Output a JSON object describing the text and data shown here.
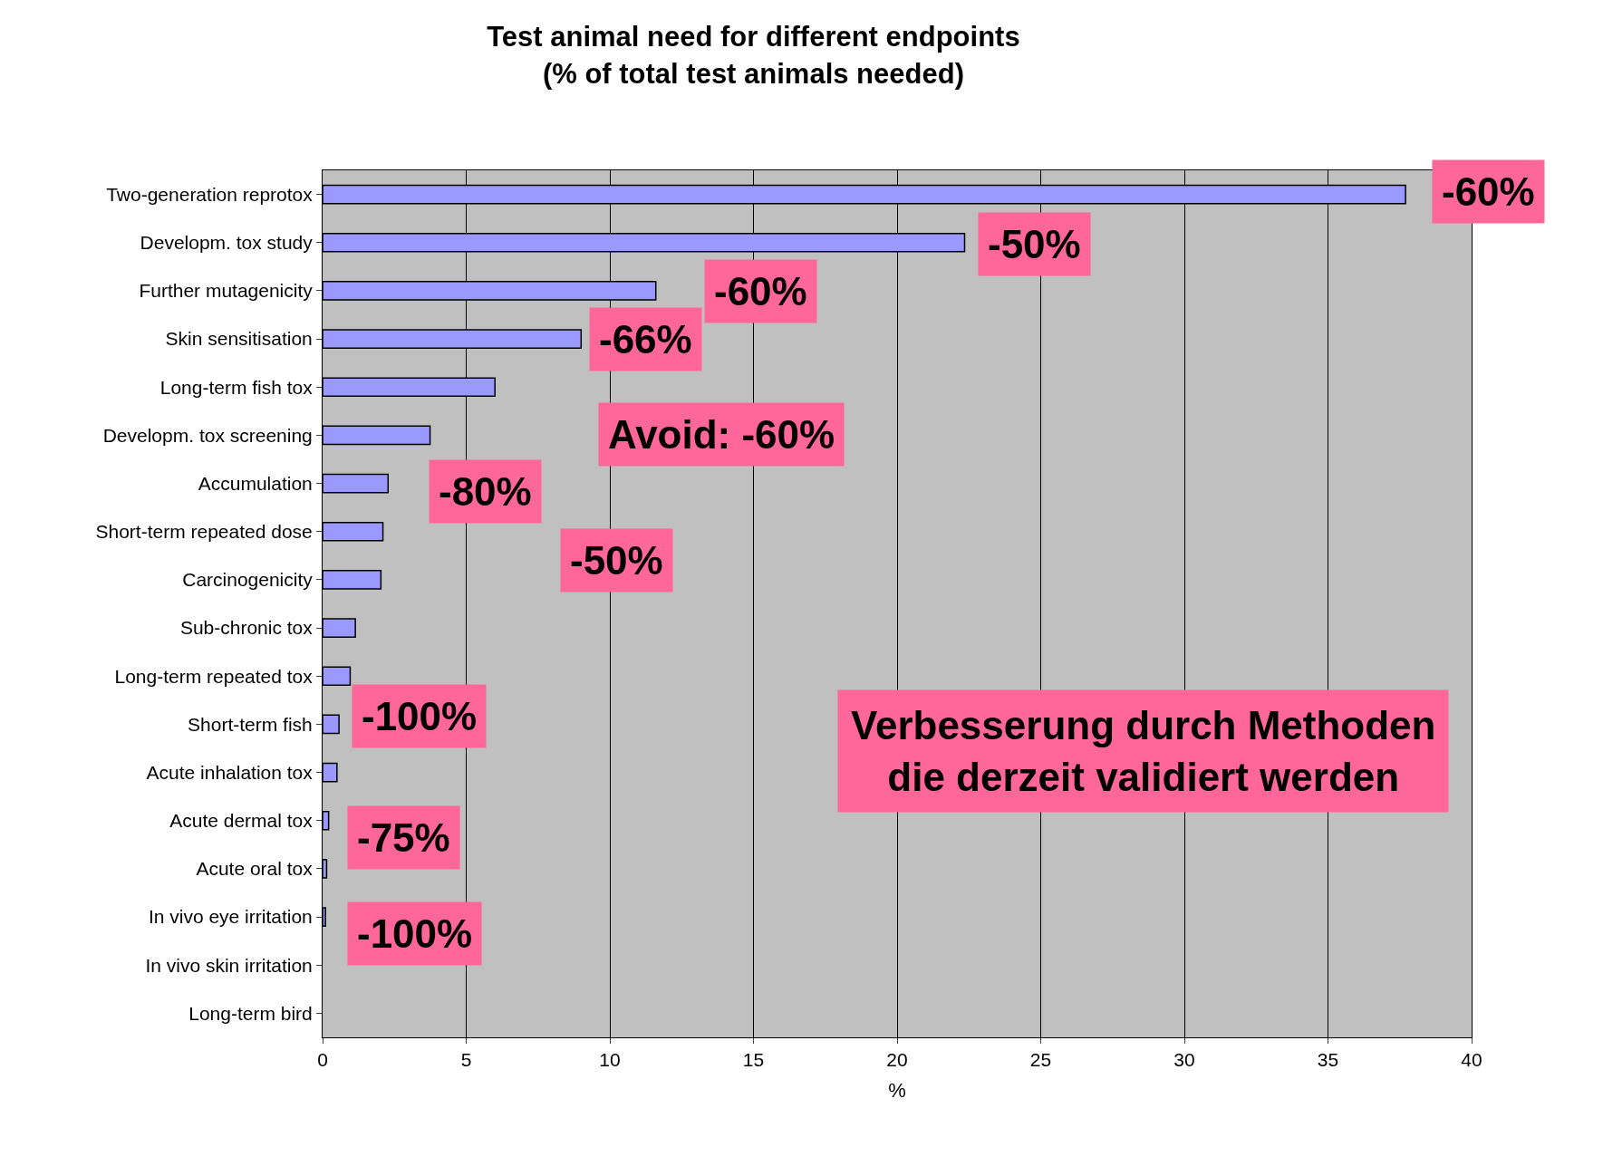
{
  "chart_data": {
    "type": "bar",
    "orientation": "horizontal",
    "title": "Test animal need for different endpoints\n(% of total test animals needed)",
    "xlabel": "%",
    "categories": [
      "Two-generation reprotox",
      "Developm. tox study",
      "Further mutagenicity",
      "Skin sensitisation",
      "Long-term fish tox",
      "Developm. tox screening",
      "Accumulation",
      "Short-term repeated dose",
      "Carcinogenicity",
      "Sub-chronic tox",
      "Long-term repeated tox",
      "Short-term fish",
      "Acute inhalation tox",
      "Acute dermal tox",
      "Acute oral tox",
      "In vivo eye irritation",
      "In vivo skin irritation",
      "Long-term bird"
    ],
    "values": [
      37.7,
      22.35,
      11.6,
      9.0,
      6.0,
      3.74,
      2.28,
      2.1,
      2.03,
      1.14,
      0.96,
      0.57,
      0.5,
      0.21,
      0.14,
      0.1,
      0,
      0
    ],
    "color": "#9999ff",
    "xlim": [
      0,
      40
    ],
    "xticks": [
      0,
      5,
      10,
      15,
      20,
      25,
      30,
      35,
      40
    ],
    "grid": "x",
    "annotations": [
      "-60%",
      "-50%",
      "-60%",
      "-66%",
      "Avoid: -60%",
      "-80%",
      "-50%",
      "-100%",
      "-75%",
      "-100%",
      "Verbesserung durch Methoden\ndie derzeit validiert werden"
    ]
  }
}
